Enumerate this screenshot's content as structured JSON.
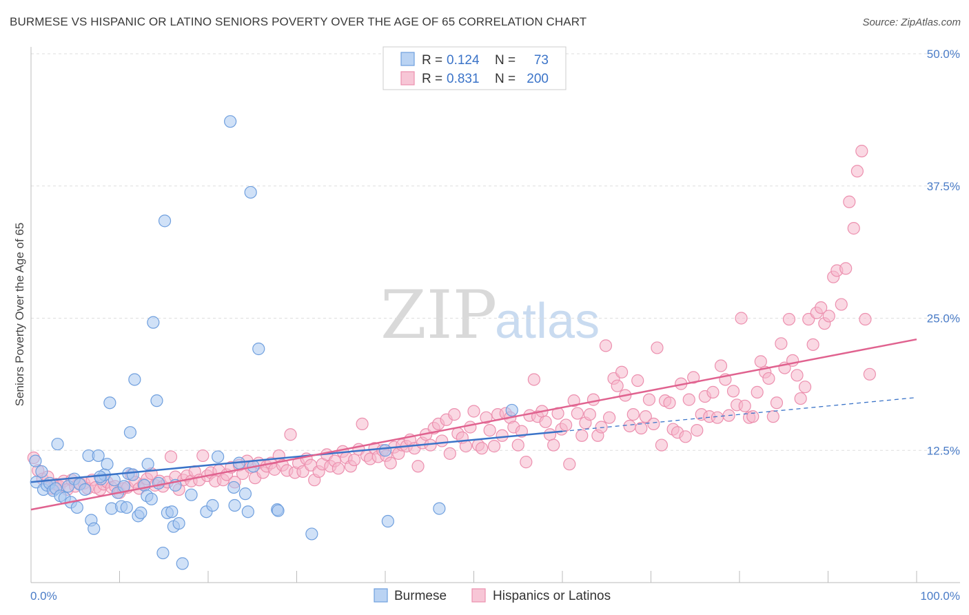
{
  "title": "BURMESE VS HISPANIC OR LATINO SENIORS POVERTY OVER THE AGE OF 65 CORRELATION CHART",
  "source": "Source: ZipAtlas.com",
  "watermark": {
    "zip": "ZIP",
    "atlas": "atlas"
  },
  "colors": {
    "burmese_fill": "#a9c8f0",
    "burmese_stroke": "#6f9fde",
    "burmese_line": "#3a73c8",
    "hispanic_fill": "#f5b8cc",
    "hispanic_stroke": "#ec8fae",
    "hispanic_line": "#e0628f",
    "tick_text": "#4a7cc7",
    "grid": "#dddddd"
  },
  "legend": {
    "rows": [
      {
        "r_label": "R =",
        "r_value": "0.124",
        "n_label": "N =",
        "n_value": "73"
      },
      {
        "r_label": "R =",
        "r_value": "0.831",
        "n_label": "N =",
        "n_value": "200"
      }
    ]
  },
  "bottom_legend": {
    "burmese": "Burmese",
    "hispanic": "Hispanics or Latinos"
  },
  "chart_data": {
    "type": "scatter",
    "xlabel": "",
    "ylabel": "Seniors Poverty Over the Age of 65",
    "xlim": [
      0,
      100
    ],
    "ylim": [
      0,
      50
    ],
    "x_tick_labels": [
      "0.0%",
      "100.0%"
    ],
    "y_ticks": [
      12.5,
      25.0,
      37.5,
      50.0
    ],
    "y_tick_labels": [
      "12.5%",
      "25.0%",
      "37.5%",
      "50.0%"
    ],
    "grid": true,
    "legend_position": "top-center",
    "series": [
      {
        "name": "Burmese",
        "trend": {
          "x": [
            0,
            60
          ],
          "y": [
            9.5,
            14.3
          ],
          "dashed_extension": {
            "x": [
              60,
              100
            ],
            "y": [
              14.3,
              17.5
            ]
          }
        },
        "points": [
          [
            0.5,
            11.5
          ],
          [
            0.6,
            9.5
          ],
          [
            1.2,
            10.5
          ],
          [
            1.4,
            8.8
          ],
          [
            1.8,
            9.2
          ],
          [
            2.1,
            9.4
          ],
          [
            2.5,
            8.7
          ],
          [
            2.8,
            8.9
          ],
          [
            3.0,
            13.1
          ],
          [
            3.3,
            8.2
          ],
          [
            3.8,
            8.0
          ],
          [
            4.2,
            9.1
          ],
          [
            4.5,
            7.6
          ],
          [
            4.9,
            9.8
          ],
          [
            5.2,
            7.1
          ],
          [
            5.5,
            9.3
          ],
          [
            6.1,
            8.8
          ],
          [
            6.5,
            12.0
          ],
          [
            6.8,
            5.9
          ],
          [
            7.1,
            5.1
          ],
          [
            7.6,
            12.0
          ],
          [
            7.9,
            9.8
          ],
          [
            8.3,
            10.2
          ],
          [
            8.6,
            11.2
          ],
          [
            8.9,
            17.0
          ],
          [
            9.1,
            7.0
          ],
          [
            9.4,
            9.7
          ],
          [
            9.8,
            8.5
          ],
          [
            10.2,
            7.2
          ],
          [
            10.5,
            9.1
          ],
          [
            10.8,
            7.1
          ],
          [
            11.0,
            10.3
          ],
          [
            11.2,
            14.2
          ],
          [
            11.5,
            10.2
          ],
          [
            11.7,
            19.2
          ],
          [
            12.1,
            6.3
          ],
          [
            12.4,
            6.6
          ],
          [
            12.8,
            9.2
          ],
          [
            13.1,
            8.2
          ],
          [
            13.2,
            11.2
          ],
          [
            13.6,
            7.9
          ],
          [
            13.8,
            24.6
          ],
          [
            14.2,
            17.2
          ],
          [
            14.4,
            9.4
          ],
          [
            14.9,
            2.8
          ],
          [
            15.1,
            34.2
          ],
          [
            15.4,
            6.6
          ],
          [
            15.9,
            6.7
          ],
          [
            16.1,
            5.3
          ],
          [
            16.3,
            9.2
          ],
          [
            16.7,
            5.6
          ],
          [
            17.1,
            1.8
          ],
          [
            18.1,
            8.3
          ],
          [
            19.8,
            6.7
          ],
          [
            20.5,
            7.3
          ],
          [
            21.1,
            11.9
          ],
          [
            22.5,
            43.6
          ],
          [
            23.0,
            7.3
          ],
          [
            23.5,
            11.3
          ],
          [
            24.2,
            8.4
          ],
          [
            24.5,
            6.7
          ],
          [
            24.8,
            36.9
          ],
          [
            25.1,
            11.0
          ],
          [
            25.7,
            22.1
          ],
          [
            27.8,
            6.9
          ],
          [
            27.9,
            6.8
          ],
          [
            31.7,
            4.6
          ],
          [
            40.0,
            12.5
          ],
          [
            40.3,
            5.8
          ],
          [
            46.1,
            7.0
          ],
          [
            54.3,
            16.3
          ],
          [
            22.9,
            9.0
          ],
          [
            7.8,
            10.0
          ]
        ]
      },
      {
        "name": "Hispanics or Latinos",
        "trend": {
          "x": [
            0,
            100
          ],
          "y": [
            6.9,
            23.0
          ]
        },
        "points": [
          [
            0.3,
            11.8
          ],
          [
            0.8,
            10.6
          ],
          [
            1.3,
            9.8
          ],
          [
            1.9,
            10.0
          ],
          [
            2.4,
            8.9
          ],
          [
            2.8,
            9.3
          ],
          [
            3.2,
            9.1
          ],
          [
            3.7,
            9.6
          ],
          [
            4.1,
            8.8
          ],
          [
            4.6,
            9.7
          ],
          [
            5.0,
            9.1
          ],
          [
            5.5,
            9.4
          ],
          [
            6.0,
            9.4
          ],
          [
            6.4,
            8.9
          ],
          [
            6.9,
            9.7
          ],
          [
            7.3,
            9.0
          ],
          [
            7.8,
            8.8
          ],
          [
            8.2,
            9.3
          ],
          [
            8.6,
            9.5
          ],
          [
            9.1,
            9.0
          ],
          [
            9.5,
            9.1
          ],
          [
            10.0,
            8.5
          ],
          [
            10.4,
            8.9
          ],
          [
            10.9,
            9.0
          ],
          [
            11.3,
            10.2
          ],
          [
            11.8,
            9.5
          ],
          [
            12.2,
            8.9
          ],
          [
            12.7,
            9.3
          ],
          [
            13.1,
            9.8
          ],
          [
            13.6,
            10.3
          ],
          [
            14.0,
            9.2
          ],
          [
            14.5,
            9.6
          ],
          [
            14.9,
            9.1
          ],
          [
            15.4,
            9.5
          ],
          [
            15.8,
            11.9
          ],
          [
            16.3,
            10.0
          ],
          [
            16.7,
            8.8
          ],
          [
            17.2,
            9.7
          ],
          [
            17.6,
            10.1
          ],
          [
            18.1,
            9.6
          ],
          [
            18.5,
            10.5
          ],
          [
            19.0,
            9.7
          ],
          [
            19.4,
            12.0
          ],
          [
            19.9,
            10.1
          ],
          [
            20.3,
            10.4
          ],
          [
            20.8,
            9.6
          ],
          [
            21.2,
            10.6
          ],
          [
            21.7,
            9.7
          ],
          [
            22.1,
            10.2
          ],
          [
            22.6,
            10.9
          ],
          [
            23.0,
            9.5
          ],
          [
            23.5,
            11.1
          ],
          [
            23.9,
            10.3
          ],
          [
            24.4,
            11.5
          ],
          [
            24.8,
            10.9
          ],
          [
            25.3,
            9.9
          ],
          [
            25.7,
            11.3
          ],
          [
            26.2,
            10.4
          ],
          [
            26.6,
            11.0
          ],
          [
            27.1,
            11.3
          ],
          [
            27.5,
            10.7
          ],
          [
            28.0,
            12.0
          ],
          [
            28.4,
            11.1
          ],
          [
            28.9,
            10.6
          ],
          [
            29.3,
            14.0
          ],
          [
            29.8,
            10.4
          ],
          [
            30.2,
            11.3
          ],
          [
            30.7,
            10.5
          ],
          [
            31.1,
            11.7
          ],
          [
            31.6,
            11.1
          ],
          [
            32.0,
            9.7
          ],
          [
            32.5,
            10.5
          ],
          [
            32.9,
            11.2
          ],
          [
            33.4,
            12.1
          ],
          [
            33.8,
            11.0
          ],
          [
            34.3,
            11.5
          ],
          [
            34.7,
            10.8
          ],
          [
            35.2,
            12.4
          ],
          [
            35.6,
            11.8
          ],
          [
            36.1,
            11.0
          ],
          [
            36.5,
            11.6
          ],
          [
            37.0,
            12.6
          ],
          [
            37.4,
            15.0
          ],
          [
            37.9,
            12.0
          ],
          [
            38.3,
            11.7
          ],
          [
            38.8,
            12.7
          ],
          [
            39.2,
            11.9
          ],
          [
            39.7,
            12.5
          ],
          [
            40.1,
            12.0
          ],
          [
            40.6,
            11.3
          ],
          [
            41.0,
            12.8
          ],
          [
            41.5,
            12.2
          ],
          [
            41.9,
            13.0
          ],
          [
            42.4,
            12.9
          ],
          [
            42.8,
            13.5
          ],
          [
            43.3,
            12.7
          ],
          [
            43.7,
            11.0
          ],
          [
            44.2,
            13.2
          ],
          [
            44.6,
            14.0
          ],
          [
            45.1,
            13.0
          ],
          [
            45.5,
            14.6
          ],
          [
            46.0,
            15.0
          ],
          [
            46.4,
            13.4
          ],
          [
            46.9,
            15.4
          ],
          [
            47.3,
            12.2
          ],
          [
            47.8,
            15.9
          ],
          [
            48.2,
            14.1
          ],
          [
            48.7,
            13.7
          ],
          [
            49.1,
            12.9
          ],
          [
            49.6,
            14.7
          ],
          [
            50.0,
            16.2
          ],
          [
            50.5,
            13.0
          ],
          [
            50.9,
            12.7
          ],
          [
            51.4,
            15.6
          ],
          [
            51.8,
            14.4
          ],
          [
            52.3,
            12.9
          ],
          [
            52.7,
            15.9
          ],
          [
            53.2,
            13.9
          ],
          [
            53.6,
            16.0
          ],
          [
            54.1,
            15.6
          ],
          [
            54.5,
            14.7
          ],
          [
            55.0,
            13.0
          ],
          [
            55.4,
            14.3
          ],
          [
            55.9,
            11.4
          ],
          [
            56.3,
            15.8
          ],
          [
            56.8,
            19.2
          ],
          [
            57.2,
            15.7
          ],
          [
            57.7,
            16.2
          ],
          [
            58.1,
            15.2
          ],
          [
            58.6,
            14.0
          ],
          [
            59.0,
            13.0
          ],
          [
            59.5,
            16.0
          ],
          [
            59.9,
            14.5
          ],
          [
            60.4,
            14.9
          ],
          [
            60.8,
            11.2
          ],
          [
            61.3,
            17.2
          ],
          [
            61.7,
            16.0
          ],
          [
            62.2,
            13.9
          ],
          [
            62.6,
            15.1
          ],
          [
            63.1,
            15.9
          ],
          [
            63.5,
            17.3
          ],
          [
            64.0,
            13.9
          ],
          [
            64.4,
            14.7
          ],
          [
            64.9,
            22.4
          ],
          [
            65.3,
            15.6
          ],
          [
            65.8,
            19.3
          ],
          [
            66.2,
            18.6
          ],
          [
            66.7,
            19.9
          ],
          [
            67.1,
            17.7
          ],
          [
            67.6,
            14.8
          ],
          [
            68.0,
            15.9
          ],
          [
            68.5,
            19.1
          ],
          [
            68.9,
            14.6
          ],
          [
            69.4,
            15.7
          ],
          [
            69.8,
            17.3
          ],
          [
            70.3,
            15.0
          ],
          [
            70.7,
            22.2
          ],
          [
            71.2,
            13.0
          ],
          [
            71.6,
            17.2
          ],
          [
            72.1,
            17.0
          ],
          [
            72.5,
            14.5
          ],
          [
            73.0,
            14.2
          ],
          [
            73.4,
            18.8
          ],
          [
            73.9,
            13.8
          ],
          [
            74.3,
            17.3
          ],
          [
            74.8,
            19.4
          ],
          [
            75.2,
            14.4
          ],
          [
            75.7,
            15.9
          ],
          [
            76.1,
            17.6
          ],
          [
            76.6,
            15.7
          ],
          [
            77.0,
            18.0
          ],
          [
            77.5,
            15.6
          ],
          [
            77.9,
            20.5
          ],
          [
            78.4,
            19.2
          ],
          [
            78.8,
            15.8
          ],
          [
            79.3,
            18.1
          ],
          [
            79.7,
            16.8
          ],
          [
            80.2,
            25.0
          ],
          [
            80.6,
            16.7
          ],
          [
            81.1,
            15.6
          ],
          [
            81.5,
            15.7
          ],
          [
            82.0,
            18.0
          ],
          [
            82.4,
            20.9
          ],
          [
            82.9,
            19.9
          ],
          [
            83.3,
            19.3
          ],
          [
            83.8,
            15.7
          ],
          [
            84.2,
            17.0
          ],
          [
            84.7,
            22.6
          ],
          [
            85.1,
            20.3
          ],
          [
            85.6,
            24.9
          ],
          [
            86.0,
            21.0
          ],
          [
            86.5,
            19.6
          ],
          [
            86.9,
            17.4
          ],
          [
            87.4,
            18.5
          ],
          [
            87.8,
            24.9
          ],
          [
            88.3,
            22.5
          ],
          [
            88.7,
            25.5
          ],
          [
            89.2,
            26.0
          ],
          [
            89.6,
            24.5
          ],
          [
            90.1,
            25.2
          ],
          [
            90.6,
            28.9
          ],
          [
            91.0,
            29.5
          ],
          [
            91.5,
            26.3
          ],
          [
            92.0,
            29.7
          ],
          [
            92.4,
            36.0
          ],
          [
            92.9,
            33.5
          ],
          [
            93.3,
            38.9
          ],
          [
            93.8,
            40.8
          ],
          [
            94.2,
            24.9
          ],
          [
            94.7,
            19.7
          ]
        ]
      }
    ]
  }
}
